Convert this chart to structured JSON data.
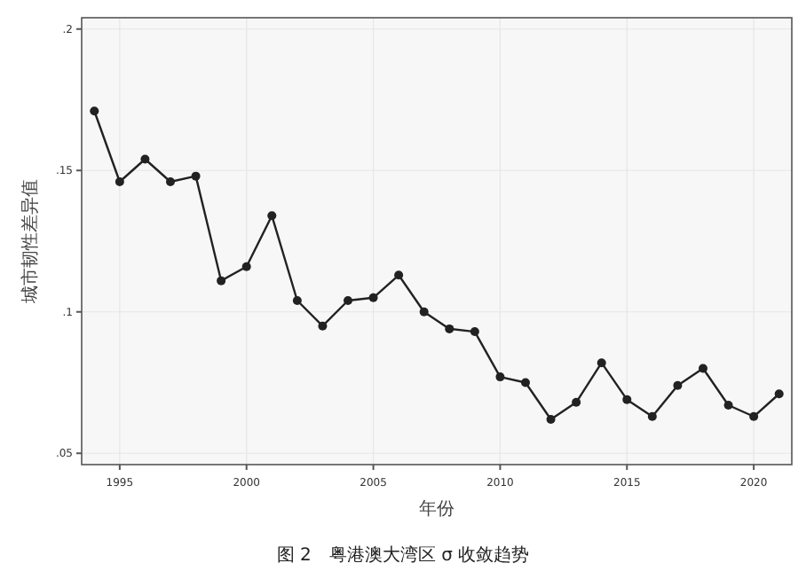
{
  "chart_data": {
    "type": "line",
    "title": "图 2　粤港澳大湾区 σ 收敛趋势",
    "xlabel": "年份",
    "ylabel": "城市韧性差异值",
    "x": [
      1994,
      1995,
      1996,
      1997,
      1998,
      1999,
      2000,
      2001,
      2002,
      2003,
      2004,
      2005,
      2006,
      2007,
      2008,
      2009,
      2010,
      2011,
      2012,
      2013,
      2014,
      2015,
      2016,
      2017,
      2018,
      2019,
      2020,
      2021
    ],
    "series": [
      {
        "color": "#222222",
        "values": [
          0.171,
          0.146,
          0.154,
          0.146,
          0.148,
          0.111,
          0.116,
          0.134,
          0.104,
          0.095,
          0.104,
          0.105,
          0.113,
          0.1,
          0.094,
          0.093,
          0.077,
          0.075,
          0.062,
          0.068,
          0.082,
          0.069,
          0.063,
          0.074,
          0.08,
          0.067,
          0.063,
          0.071
        ]
      }
    ],
    "xlim": [
      1993.5,
      2021.5
    ],
    "xticks": [
      1995,
      2000,
      2005,
      2010,
      2015,
      2020
    ],
    "ylim": [
      0.046,
      0.204
    ],
    "yticks": [
      {
        "value": 0.05,
        "label": ".05"
      },
      {
        "value": 0.1,
        "label": ".1"
      },
      {
        "value": 0.15,
        "label": ".15"
      },
      {
        "value": 0.2,
        "label": ".2"
      }
    ],
    "grid": true,
    "marker": "circle",
    "line_style": "solid"
  }
}
